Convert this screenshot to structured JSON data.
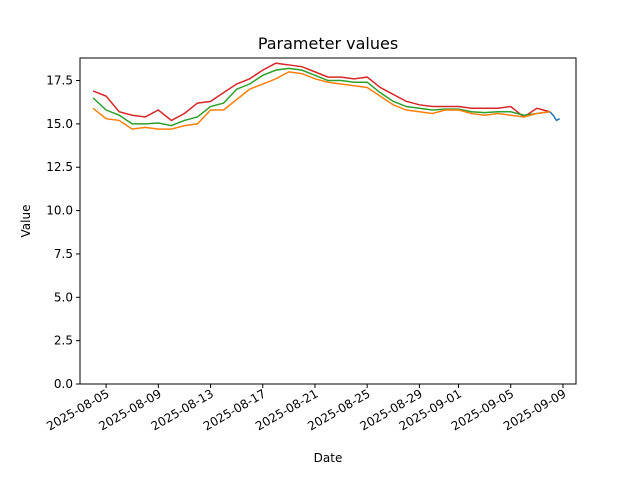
{
  "chart_data": {
    "type": "line",
    "title": "Parameter values",
    "xlabel": "Date",
    "ylabel": "Value",
    "ylim": [
      0,
      18.8
    ],
    "xlim": [
      "2025-08-03",
      "2025-09-10"
    ],
    "x_ticks": [
      "2025-08-05",
      "2025-08-09",
      "2025-08-13",
      "2025-08-17",
      "2025-08-21",
      "2025-08-25",
      "2025-08-29",
      "2025-09-01",
      "2025-09-05",
      "2025-09-09"
    ],
    "y_ticks": [
      "0.0",
      "2.5",
      "5.0",
      "7.5",
      "10.0",
      "12.5",
      "15.0",
      "17.5"
    ],
    "grid": false,
    "series": [
      {
        "color": "#d62728",
        "points": [
          [
            "2025-08-04",
            16.9
          ],
          [
            "2025-08-05",
            16.6
          ],
          [
            "2025-08-06",
            15.7
          ],
          [
            "2025-08-07",
            15.5
          ],
          [
            "2025-08-08",
            15.4
          ],
          [
            "2025-08-09",
            15.8
          ],
          [
            "2025-08-10",
            15.2
          ],
          [
            "2025-08-11",
            15.6
          ],
          [
            "2025-08-12",
            16.2
          ],
          [
            "2025-08-13",
            16.3
          ],
          [
            "2025-08-14",
            16.8
          ],
          [
            "2025-08-15",
            17.3
          ],
          [
            "2025-08-16",
            17.6
          ],
          [
            "2025-08-17",
            18.1
          ],
          [
            "2025-08-18",
            18.5
          ],
          [
            "2025-08-19",
            18.4
          ],
          [
            "2025-08-20",
            18.3
          ],
          [
            "2025-08-21",
            18.0
          ],
          [
            "2025-08-22",
            17.7
          ],
          [
            "2025-08-23",
            17.7
          ],
          [
            "2025-08-24",
            17.6
          ],
          [
            "2025-08-25",
            17.7
          ],
          [
            "2025-08-26",
            17.1
          ],
          [
            "2025-08-27",
            16.7
          ],
          [
            "2025-08-28",
            16.3
          ],
          [
            "2025-08-29",
            16.1
          ],
          [
            "2025-08-30",
            16.0
          ],
          [
            "2025-08-31",
            16.0
          ],
          [
            "2025-09-01",
            16.0
          ],
          [
            "2025-09-02",
            15.9
          ],
          [
            "2025-09-03",
            15.9
          ],
          [
            "2025-09-04",
            15.9
          ],
          [
            "2025-09-05",
            16.0
          ],
          [
            "2025-09-06",
            15.4
          ],
          [
            "2025-09-07",
            15.9
          ],
          [
            "2025-09-08",
            15.7
          ]
        ]
      },
      {
        "color": "#2ca02c",
        "points": [
          [
            "2025-08-04",
            16.5
          ],
          [
            "2025-08-05",
            15.8
          ],
          [
            "2025-08-06",
            15.5
          ],
          [
            "2025-08-07",
            15.0
          ],
          [
            "2025-08-08",
            15.0
          ],
          [
            "2025-08-09",
            15.05
          ],
          [
            "2025-08-10",
            14.9
          ],
          [
            "2025-08-11",
            15.2
          ],
          [
            "2025-08-12",
            15.4
          ],
          [
            "2025-08-13",
            16.0
          ],
          [
            "2025-08-14",
            16.2
          ],
          [
            "2025-08-15",
            17.0
          ],
          [
            "2025-08-16",
            17.3
          ],
          [
            "2025-08-17",
            17.8
          ],
          [
            "2025-08-18",
            18.1
          ],
          [
            "2025-08-19",
            18.2
          ],
          [
            "2025-08-20",
            18.1
          ],
          [
            "2025-08-21",
            17.8
          ],
          [
            "2025-08-22",
            17.5
          ],
          [
            "2025-08-23",
            17.5
          ],
          [
            "2025-08-24",
            17.4
          ],
          [
            "2025-08-25",
            17.4
          ],
          [
            "2025-08-26",
            16.8
          ],
          [
            "2025-08-27",
            16.3
          ],
          [
            "2025-08-28",
            16.0
          ],
          [
            "2025-08-29",
            15.9
          ],
          [
            "2025-08-30",
            15.8
          ],
          [
            "2025-08-31",
            15.85
          ],
          [
            "2025-09-01",
            15.85
          ],
          [
            "2025-09-02",
            15.7
          ],
          [
            "2025-09-03",
            15.65
          ],
          [
            "2025-09-04",
            15.7
          ],
          [
            "2025-09-05",
            15.7
          ],
          [
            "2025-09-06",
            15.5
          ],
          [
            "2025-09-07",
            15.6
          ],
          [
            "2025-09-08",
            15.7
          ]
        ]
      },
      {
        "color": "#ff7f0e",
        "points": [
          [
            "2025-08-04",
            15.9
          ],
          [
            "2025-08-05",
            15.3
          ],
          [
            "2025-08-06",
            15.2
          ],
          [
            "2025-08-07",
            14.7
          ],
          [
            "2025-08-08",
            14.8
          ],
          [
            "2025-08-09",
            14.7
          ],
          [
            "2025-08-10",
            14.7
          ],
          [
            "2025-08-11",
            14.9
          ],
          [
            "2025-08-12",
            15.0
          ],
          [
            "2025-08-13",
            15.8
          ],
          [
            "2025-08-14",
            15.8
          ],
          [
            "2025-08-15",
            16.4
          ],
          [
            "2025-08-16",
            17.0
          ],
          [
            "2025-08-17",
            17.3
          ],
          [
            "2025-08-18",
            17.6
          ],
          [
            "2025-08-19",
            18.0
          ],
          [
            "2025-08-20",
            17.9
          ],
          [
            "2025-08-21",
            17.6
          ],
          [
            "2025-08-22",
            17.4
          ],
          [
            "2025-08-23",
            17.3
          ],
          [
            "2025-08-24",
            17.2
          ],
          [
            "2025-08-25",
            17.1
          ],
          [
            "2025-08-26",
            16.6
          ],
          [
            "2025-08-27",
            16.1
          ],
          [
            "2025-08-28",
            15.8
          ],
          [
            "2025-08-29",
            15.7
          ],
          [
            "2025-08-30",
            15.6
          ],
          [
            "2025-08-31",
            15.8
          ],
          [
            "2025-09-01",
            15.8
          ],
          [
            "2025-09-02",
            15.6
          ],
          [
            "2025-09-03",
            15.5
          ],
          [
            "2025-09-04",
            15.6
          ],
          [
            "2025-09-05",
            15.5
          ],
          [
            "2025-09-06",
            15.4
          ],
          [
            "2025-09-07",
            15.6
          ],
          [
            "2025-09-08",
            15.7
          ]
        ]
      },
      {
        "color": "#1f77b4",
        "points": [
          [
            "2025-09-08",
            15.7
          ],
          [
            "2025-09-08 06:00",
            15.5
          ],
          [
            "2025-09-08 12:00",
            15.2
          ],
          [
            "2025-09-08 18:00",
            15.3
          ]
        ]
      }
    ]
  }
}
